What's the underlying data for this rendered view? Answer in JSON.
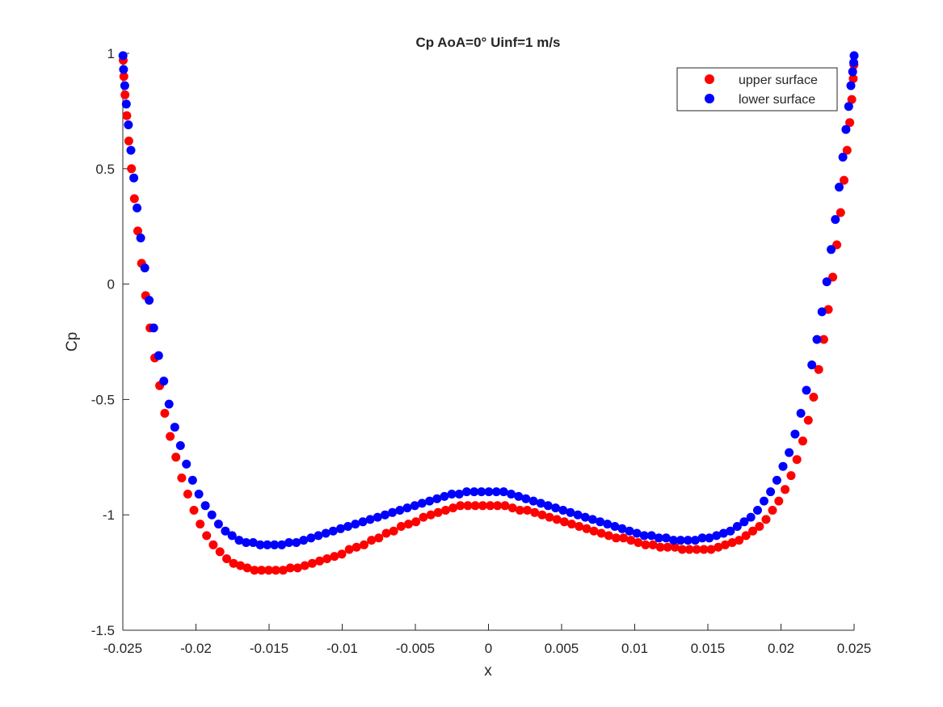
{
  "chart_data": {
    "type": "scatter",
    "title": "Cp AoA=0° Uinf=1 m/s",
    "xlabel": "x",
    "ylabel": "Cp",
    "xlim": [
      -0.025,
      0.025
    ],
    "ylim": [
      -1.5,
      1
    ],
    "xticks": [
      -0.025,
      -0.02,
      -0.015,
      -0.01,
      -0.005,
      0,
      0.005,
      0.01,
      0.015,
      0.02,
      0.025
    ],
    "xtick_labels": [
      "-0.025",
      "-0.02",
      "-0.015",
      "-0.01",
      "-0.005",
      "0",
      "0.005",
      "0.01",
      "0.015",
      "0.02",
      "0.025"
    ],
    "yticks": [
      -1.5,
      -1,
      -0.5,
      0,
      0.5,
      1
    ],
    "ytick_labels": [
      "-1.5",
      "-1",
      "-0.5",
      "0",
      "0.5",
      "1"
    ],
    "grid": false,
    "legend_position": "top-right",
    "series": [
      {
        "name": "upper surface",
        "color": "#ff0000",
        "x": [
          -0.02497,
          -0.02493,
          -0.02485,
          -0.02473,
          -0.02459,
          -0.02441,
          -0.02421,
          -0.02398,
          -0.02372,
          -0.02344,
          -0.02314,
          -0.02282,
          -0.02248,
          -0.02213,
          -0.02176,
          -0.02137,
          -0.02097,
          -0.02056,
          -0.02014,
          -0.01971,
          -0.01927,
          -0.01882,
          -0.01836,
          -0.0179,
          -0.01743,
          -0.01696,
          -0.01649,
          -0.016,
          -0.01552,
          -0.01503,
          -0.01454,
          -0.01404,
          -0.01355,
          -0.01305,
          -0.01255,
          -0.01205,
          -0.01154,
          -0.01104,
          -0.01053,
          -0.01003,
          -0.00952,
          -0.00902,
          -0.00851,
          -0.008,
          -0.0075,
          -0.00699,
          -0.00648,
          -0.00597,
          -0.00547,
          -0.00496,
          -0.00445,
          -0.00394,
          -0.00344,
          -0.00293,
          -0.00242,
          -0.00192,
          -0.00141,
          -0.0009,
          -0.00039,
          0.00012,
          0.00062,
          0.00113,
          0.00164,
          0.00215,
          0.00265,
          0.00316,
          0.00367,
          0.00417,
          0.00468,
          0.00519,
          0.00569,
          0.0062,
          0.00671,
          0.00721,
          0.00772,
          0.00822,
          0.00873,
          0.00923,
          0.00974,
          0.01024,
          0.01074,
          0.01125,
          0.01175,
          0.01225,
          0.01275,
          0.01325,
          0.01374,
          0.01424,
          0.01473,
          0.01522,
          0.01571,
          0.01619,
          0.01667,
          0.01714,
          0.01761,
          0.01807,
          0.01853,
          0.01898,
          0.01942,
          0.01985,
          0.02028,
          0.02069,
          0.02109,
          0.02149,
          0.02187,
          0.02223,
          0.02258,
          0.02292,
          0.02324,
          0.02354,
          0.02382,
          0.02408,
          0.02431,
          0.02452,
          0.0247,
          0.02484,
          0.02494,
          0.02499
        ],
        "y": [
          0.97,
          0.9,
          0.82,
          0.73,
          0.62,
          0.5,
          0.37,
          0.23,
          0.09,
          -0.05,
          -0.19,
          -0.32,
          -0.44,
          -0.56,
          -0.66,
          -0.75,
          -0.84,
          -0.91,
          -0.98,
          -1.04,
          -1.09,
          -1.13,
          -1.16,
          -1.19,
          -1.21,
          -1.22,
          -1.23,
          -1.24,
          -1.24,
          -1.24,
          -1.24,
          -1.24,
          -1.23,
          -1.23,
          -1.22,
          -1.21,
          -1.2,
          -1.19,
          -1.18,
          -1.17,
          -1.15,
          -1.14,
          -1.13,
          -1.11,
          -1.1,
          -1.08,
          -1.07,
          -1.05,
          -1.04,
          -1.03,
          -1.01,
          -1.0,
          -0.99,
          -0.98,
          -0.97,
          -0.96,
          -0.96,
          -0.96,
          -0.96,
          -0.96,
          -0.96,
          -0.96,
          -0.97,
          -0.98,
          -0.98,
          -0.99,
          -1.0,
          -1.01,
          -1.02,
          -1.03,
          -1.04,
          -1.05,
          -1.06,
          -1.07,
          -1.08,
          -1.09,
          -1.1,
          -1.1,
          -1.11,
          -1.12,
          -1.13,
          -1.13,
          -1.14,
          -1.14,
          -1.14,
          -1.15,
          -1.15,
          -1.15,
          -1.15,
          -1.15,
          -1.14,
          -1.13,
          -1.12,
          -1.11,
          -1.09,
          -1.07,
          -1.05,
          -1.02,
          -0.98,
          -0.94,
          -0.89,
          -0.83,
          -0.76,
          -0.68,
          -0.59,
          -0.49,
          -0.37,
          -0.24,
          -0.11,
          0.03,
          0.17,
          0.31,
          0.45,
          0.58,
          0.7,
          0.8,
          0.89,
          0.95
        ]
      },
      {
        "name": "lower surface",
        "color": "#0000ff",
        "x": [
          -0.02499,
          -0.02495,
          -0.02487,
          -0.02476,
          -0.02462,
          -0.02445,
          -0.02425,
          -0.02403,
          -0.02378,
          -0.0235,
          -0.0232,
          -0.02289,
          -0.02255,
          -0.0222,
          -0.02184,
          -0.02145,
          -0.02106,
          -0.02065,
          -0.02023,
          -0.0198,
          -0.01936,
          -0.01891,
          -0.01846,
          -0.01799,
          -0.01753,
          -0.01705,
          -0.01657,
          -0.01609,
          -0.01561,
          -0.01512,
          -0.01463,
          -0.01413,
          -0.01364,
          -0.01314,
          -0.01264,
          -0.01213,
          -0.01163,
          -0.01112,
          -0.01062,
          -0.01011,
          -0.00961,
          -0.0091,
          -0.00859,
          -0.00809,
          -0.00758,
          -0.00707,
          -0.00657,
          -0.00606,
          -0.00555,
          -0.00504,
          -0.00454,
          -0.00403,
          -0.00352,
          -0.00301,
          -0.00251,
          -0.002,
          -0.00149,
          -0.00098,
          -0.00048,
          3e-05,
          0.00054,
          0.00104,
          0.00155,
          0.00206,
          0.00256,
          0.00307,
          0.00358,
          0.00408,
          0.00459,
          0.0051,
          0.0056,
          0.00611,
          0.00662,
          0.00712,
          0.00763,
          0.00813,
          0.00864,
          0.00914,
          0.00964,
          0.01015,
          0.01065,
          0.01115,
          0.01165,
          0.01215,
          0.01265,
          0.01314,
          0.01364,
          0.01413,
          0.01462,
          0.0151,
          0.01559,
          0.01607,
          0.01654,
          0.01701,
          0.01748,
          0.01794,
          0.0184,
          0.01884,
          0.01929,
          0.01972,
          0.02014,
          0.02056,
          0.02096,
          0.02136,
          0.02174,
          0.02211,
          0.02246,
          0.0228,
          0.02313,
          0.02343,
          0.02372,
          0.02398,
          0.02423,
          0.02444,
          0.02463,
          0.02478,
          0.0249,
          0.02497,
          0.025
        ],
        "y": [
          0.99,
          0.93,
          0.86,
          0.78,
          0.69,
          0.58,
          0.46,
          0.33,
          0.2,
          0.07,
          -0.07,
          -0.19,
          -0.31,
          -0.42,
          -0.52,
          -0.62,
          -0.7,
          -0.78,
          -0.85,
          -0.91,
          -0.96,
          -1.0,
          -1.04,
          -1.07,
          -1.09,
          -1.11,
          -1.12,
          -1.12,
          -1.13,
          -1.13,
          -1.13,
          -1.13,
          -1.12,
          -1.12,
          -1.11,
          -1.1,
          -1.09,
          -1.08,
          -1.07,
          -1.06,
          -1.05,
          -1.04,
          -1.03,
          -1.02,
          -1.01,
          -1.0,
          -0.99,
          -0.98,
          -0.97,
          -0.96,
          -0.95,
          -0.94,
          -0.93,
          -0.92,
          -0.91,
          -0.91,
          -0.9,
          -0.9,
          -0.9,
          -0.9,
          -0.9,
          -0.9,
          -0.91,
          -0.92,
          -0.93,
          -0.94,
          -0.95,
          -0.96,
          -0.97,
          -0.98,
          -0.99,
          -1.0,
          -1.01,
          -1.02,
          -1.03,
          -1.04,
          -1.05,
          -1.06,
          -1.07,
          -1.08,
          -1.09,
          -1.09,
          -1.1,
          -1.1,
          -1.11,
          -1.11,
          -1.11,
          -1.11,
          -1.1,
          -1.1,
          -1.09,
          -1.08,
          -1.07,
          -1.05,
          -1.03,
          -1.01,
          -0.98,
          -0.94,
          -0.9,
          -0.85,
          -0.79,
          -0.73,
          -0.65,
          -0.56,
          -0.46,
          -0.35,
          -0.24,
          -0.12,
          0.01,
          0.15,
          0.28,
          0.42,
          0.55,
          0.67,
          0.77,
          0.86,
          0.92,
          0.96,
          0.99
        ]
      }
    ]
  }
}
